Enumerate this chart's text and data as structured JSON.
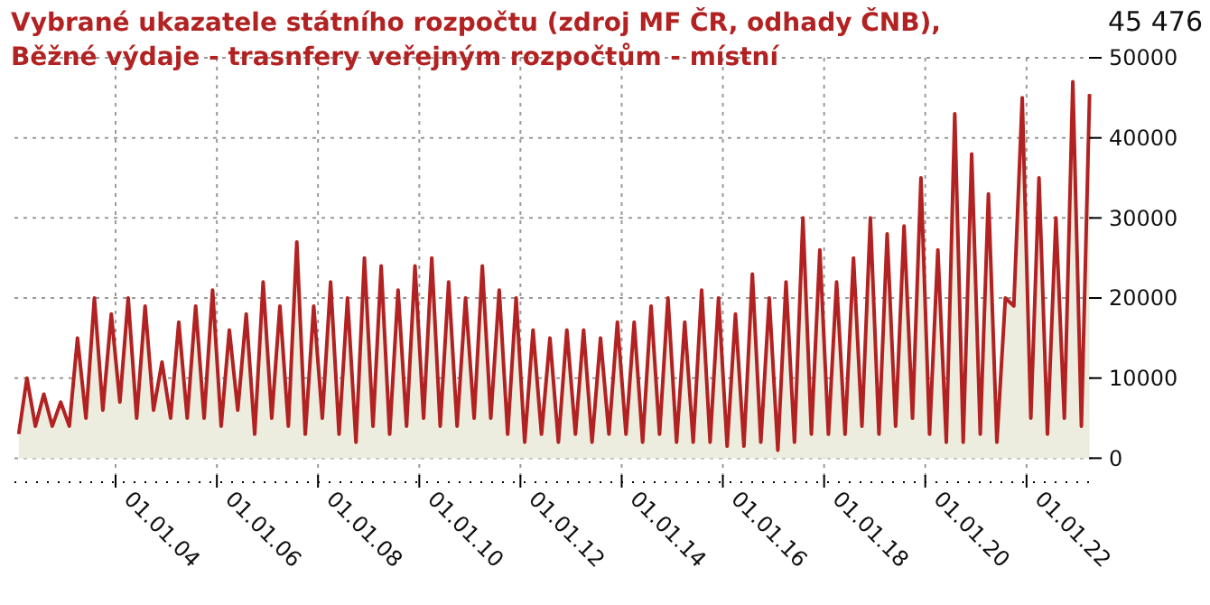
{
  "chart_data": {
    "type": "area",
    "title": "Vybrané ukazatele státního rozpočtu (zdroj MF ČR, odhady ČNB), Běžné výdaje - trasnfery veřejným rozpočtům - místní",
    "annotations": [
      "45 476"
    ],
    "x": [
      "2002-02",
      "2002-04",
      "2002-06",
      "2002-08",
      "2002-10",
      "2002-12",
      "2003-02",
      "2003-04",
      "2003-06",
      "2003-08",
      "2003-10",
      "2003-12",
      "2004-02",
      "2004-04",
      "2004-06",
      "2004-08",
      "2004-10",
      "2004-12",
      "2005-02",
      "2005-04",
      "2005-06",
      "2005-08",
      "2005-10",
      "2005-12",
      "2006-02",
      "2006-04",
      "2006-06",
      "2006-08",
      "2006-10",
      "2006-12",
      "2007-02",
      "2007-04",
      "2007-06",
      "2007-08",
      "2007-10",
      "2007-12",
      "2008-02",
      "2008-04",
      "2008-06",
      "2008-08",
      "2008-10",
      "2008-12",
      "2009-02",
      "2009-04",
      "2009-06",
      "2009-08",
      "2009-10",
      "2009-12",
      "2010-02",
      "2010-04",
      "2010-06",
      "2010-08",
      "2010-10",
      "2010-12",
      "2011-02",
      "2011-04",
      "2011-06",
      "2011-08",
      "2011-10",
      "2011-12",
      "2012-02",
      "2012-04",
      "2012-06",
      "2012-08",
      "2012-10",
      "2012-12",
      "2013-02",
      "2013-04",
      "2013-06",
      "2013-08",
      "2013-10",
      "2013-12",
      "2014-02",
      "2014-04",
      "2014-06",
      "2014-08",
      "2014-10",
      "2014-12",
      "2015-02",
      "2015-04",
      "2015-06",
      "2015-08",
      "2015-10",
      "2015-12",
      "2016-02",
      "2016-04",
      "2016-06",
      "2016-08",
      "2016-10",
      "2016-12",
      "2017-02",
      "2017-04",
      "2017-06",
      "2017-08",
      "2017-10",
      "2017-12",
      "2018-02",
      "2018-04",
      "2018-06",
      "2018-08",
      "2018-10",
      "2018-12",
      "2019-02",
      "2019-04",
      "2019-06",
      "2019-08",
      "2019-10",
      "2019-12",
      "2020-02",
      "2020-04",
      "2020-06",
      "2020-08",
      "2020-10",
      "2020-12",
      "2021-02",
      "2021-04",
      "2021-06",
      "2021-08",
      "2021-10",
      "2021-12",
      "2022-02",
      "2022-04",
      "2022-06",
      "2022-08",
      "2022-10",
      "2022-12",
      "2023-02",
      "2023-04"
    ],
    "series": [
      {
        "color": "#b22222",
        "values": [
          3000,
          10000,
          4000,
          8000,
          4000,
          7000,
          4000,
          15000,
          5000,
          20000,
          6000,
          18000,
          7000,
          20000,
          5000,
          19000,
          6000,
          12000,
          5000,
          17000,
          5000,
          19000,
          5000,
          21000,
          4000,
          16000,
          6000,
          18000,
          3000,
          22000,
          5000,
          19000,
          4000,
          27000,
          3000,
          19000,
          5000,
          22000,
          3000,
          20000,
          2000,
          25000,
          4000,
          24000,
          3000,
          21000,
          4000,
          24000,
          5000,
          25000,
          4000,
          22000,
          4000,
          20000,
          5000,
          24000,
          5000,
          21000,
          3000,
          20000,
          2000,
          16000,
          3000,
          15000,
          2000,
          16000,
          3000,
          16000,
          2000,
          15000,
          3000,
          17000,
          3000,
          17000,
          2000,
          19000,
          3000,
          20000,
          2000,
          17000,
          2000,
          21000,
          2000,
          20000,
          1500,
          18000,
          1500,
          23000,
          2000,
          20000,
          1000,
          22000,
          2000,
          30000,
          3000,
          26000,
          3000,
          22000,
          3000,
          25000,
          4000,
          30000,
          3000,
          28000,
          4000,
          29000,
          5000,
          35000,
          3000,
          26000,
          2000,
          43000,
          2000,
          38000,
          3000,
          33000,
          2000,
          20000,
          19000,
          45000,
          5000,
          35000,
          3000,
          30000,
          5000,
          47000,
          4000,
          45476
        ]
      }
    ],
    "xlim": [
      "2002-01",
      "2023-06"
    ],
    "xticks": [
      {
        "value": "2004-01-01",
        "label": "01.01.04"
      },
      {
        "value": "2006-01-01",
        "label": "01.01.06"
      },
      {
        "value": "2008-01-01",
        "label": "01.01.08"
      },
      {
        "value": "2010-01-01",
        "label": "01.01.10"
      },
      {
        "value": "2012-01-01",
        "label": "01.01.12"
      },
      {
        "value": "2014-01-01",
        "label": "01.01.14"
      },
      {
        "value": "2016-01-01",
        "label": "01.01.16"
      },
      {
        "value": "2018-01-01",
        "label": "01.01.18"
      },
      {
        "value": "2020-01-01",
        "label": "01.01.20"
      },
      {
        "value": "2022-01-01",
        "label": "01.01.22"
      }
    ],
    "ylim": [
      -3000,
      50000
    ],
    "yticks": [
      0,
      10000,
      20000,
      30000,
      40000,
      50000
    ],
    "grid": true
  }
}
